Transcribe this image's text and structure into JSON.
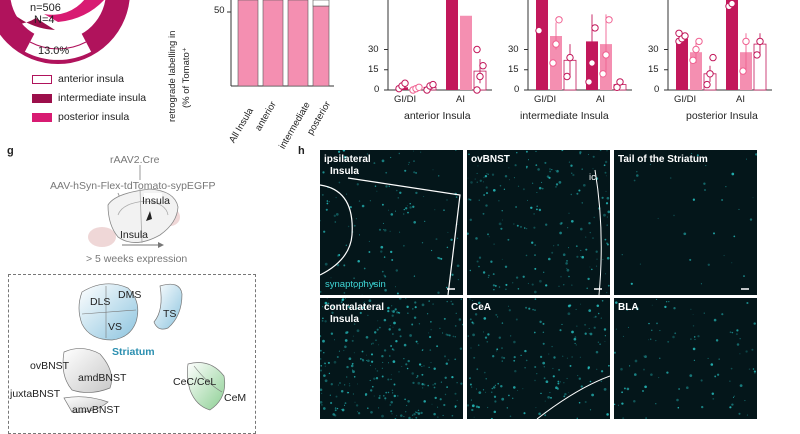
{
  "colors": {
    "dark_magenta": "#c2185b",
    "pink": "#f48fb1",
    "white": "#ffffff",
    "cyan_signal": "#28c8c8",
    "micro_bg": "#04161a",
    "green_region": "#a5d6a7",
    "blue_region": "#a9d3e6"
  },
  "donut": {
    "n_label": "n=506",
    "N_label": "N=4",
    "pct_label": "13.0%",
    "legend": [
      {
        "label": "anterior insula",
        "color": "#ffffff"
      },
      {
        "label": "intermediate insula",
        "color": "#9c0f4b"
      },
      {
        "label": "posterior insula",
        "color": "#d81b72"
      }
    ]
  },
  "bar_panel": {
    "ylabel_line1": "retrograde labelling in",
    "ylabel_line2": "(% of Tomato⁺",
    "ytick": "50",
    "categories": [
      "All Insula",
      "anterior",
      "intermediate",
      "posterior"
    ]
  },
  "group_panels": [
    {
      "title": "anterior Insula",
      "ytick_top": "30",
      "ytick_mid": "15",
      "ytick_zero": "0",
      "xticks": [
        "GI/DI",
        "AI"
      ]
    },
    {
      "title": "intermediate Insula",
      "ytick_top": "30",
      "ytick_mid": "15",
      "ytick_zero": "0",
      "xticks": [
        "GI/DI",
        "AI"
      ]
    },
    {
      "title": "posterior Insula",
      "ytick_top": "30",
      "ytick_mid": "15",
      "ytick_zero": "0",
      "xticks": [
        "GI/DI",
        "AI"
      ]
    }
  ],
  "panel_g": {
    "letter": "g",
    "virus1": "rAAV2.Cre",
    "virus2": "AAV-hSyn-Flex-tdTomato-sypEGFP",
    "insula_top": "Insula",
    "insula_bottom": "Insula",
    "expression": "> 5 weeks expression",
    "striatum_regions": [
      "DLS",
      "DMS",
      "VS",
      "TS"
    ],
    "striatum_label": "Striatum",
    "bnst_regions": [
      "ovBNST",
      "amdBNST",
      "juxtaBNST",
      "amvBNST"
    ],
    "amygdala_regions": [
      "CeC/CeL",
      "CeM"
    ]
  },
  "panel_h": {
    "letter": "h",
    "tiles": [
      {
        "title_line1": "ipsilateral",
        "title_line2": "Insula",
        "sublabel": "synaptophysin"
      },
      {
        "title_line1": "ovBNST",
        "title_line2": "",
        "sublabel": "ic"
      },
      {
        "title_line1": "Tail of the Striatum",
        "title_line2": "",
        "sublabel": ""
      },
      {
        "title_line1": "contralateral",
        "title_line2": "Insula",
        "sublabel": ""
      },
      {
        "title_line1": "CeA",
        "title_line2": "",
        "sublabel": ""
      },
      {
        "title_line1": "BLA",
        "title_line2": "",
        "sublabel": ""
      }
    ]
  }
}
